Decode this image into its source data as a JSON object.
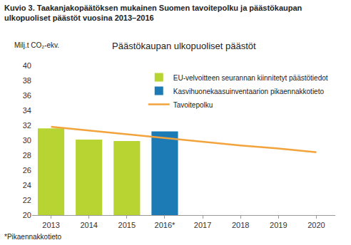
{
  "chart_data": {
    "type": "bar",
    "title": "Kuvio 3. Taakanjakopäätöksen mukainen Suomen tavoitepolku ja päästökaupan\nulkopuoliset päästöt vuosina 2013–2016",
    "subtitle": "Päästökaupan ulkopuoliset päästöt",
    "y_label": "Milj.t CO₂-ekv.",
    "annotations": [
      "*Pikaennakkotieto"
    ],
    "categories": [
      "2013",
      "2014",
      "2015",
      "2016*",
      "2017",
      "2018",
      "2019",
      "2020"
    ],
    "series": [
      {
        "name": "EU-velvoitteen seurannan kiinnitetyt päästötiedot",
        "type": "bar",
        "color": "#b8d432",
        "values": [
          31.6,
          30.1,
          29.9,
          null,
          null,
          null,
          null,
          null
        ]
      },
      {
        "name": "Kasvihuonekaasuinventaarion pikaennakkotieto",
        "type": "bar",
        "color": "#1c7ab4",
        "values": [
          null,
          null,
          null,
          31.2,
          null,
          null,
          null,
          null
        ]
      },
      {
        "name": "Tavoitepolku",
        "type": "line",
        "color": "#f3a33c",
        "values": [
          31.8,
          31.3,
          30.8,
          30.3,
          29.8,
          29.3,
          28.9,
          28.4
        ]
      }
    ],
    "ylim": [
      20,
      40
    ],
    "yticks": [
      20,
      22,
      24,
      26,
      28,
      30,
      32,
      34,
      36,
      38,
      40
    ],
    "grid": false,
    "legend": "top right"
  }
}
